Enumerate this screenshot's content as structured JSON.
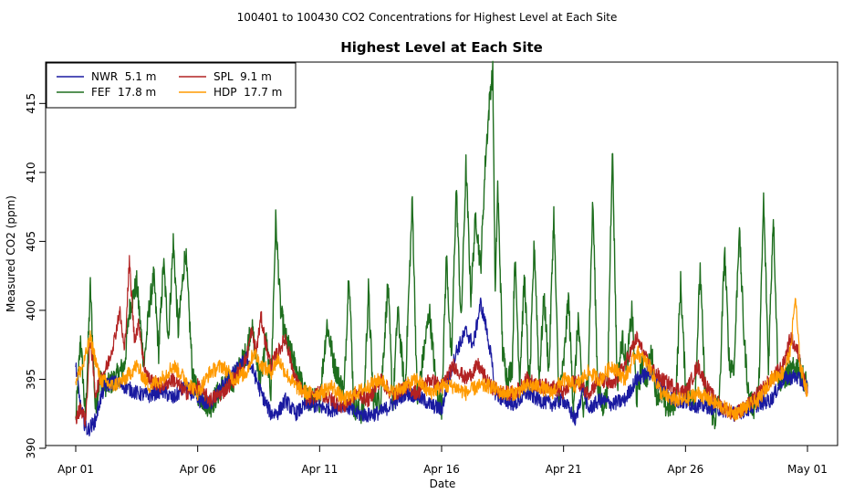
{
  "header": {
    "super_title": "100401  to  100430 CO2 Concentrations for Highest Level at Each Site"
  },
  "chart_data": {
    "type": "line",
    "title": "Highest Level at Each Site",
    "xlabel": "Date",
    "ylabel": "Measured CO2 (ppm)",
    "xlim": [
      0,
      30
    ],
    "ylim": [
      390,
      418
    ],
    "x_ticks": [
      {
        "value": 0,
        "label": "Apr 01"
      },
      {
        "value": 5,
        "label": "Apr 06"
      },
      {
        "value": 10,
        "label": "Apr 11"
      },
      {
        "value": 15,
        "label": "Apr 16"
      },
      {
        "value": 20,
        "label": "Apr 21"
      },
      {
        "value": 25,
        "label": "Apr 26"
      },
      {
        "value": 30,
        "label": "May 01"
      }
    ],
    "y_ticks": [
      {
        "value": 390,
        "label": "390"
      },
      {
        "value": 395,
        "label": "395"
      },
      {
        "value": 400,
        "label": "400"
      },
      {
        "value": 405,
        "label": "405"
      },
      {
        "value": 410,
        "label": "410"
      },
      {
        "value": 415,
        "label": "415"
      }
    ],
    "legend_position": "top-left",
    "grid": false,
    "series": [
      {
        "name": "NWR  5.1 m",
        "color": "#1a1aa0",
        "x": [
          0,
          0.2,
          0.4,
          0.5,
          0.8,
          1,
          1.2,
          1.5,
          2,
          2.5,
          3,
          3.5,
          4,
          4.5,
          5,
          5.5,
          6,
          6.5,
          7,
          7.3,
          7.6,
          8,
          8.3,
          8.6,
          9,
          9.5,
          10,
          10.5,
          11,
          11.5,
          12,
          12.5,
          13,
          13.5,
          14,
          14.5,
          15,
          15.3,
          15.6,
          16,
          16.3,
          16.6,
          16.8,
          17,
          17.2,
          17.5,
          18,
          18.5,
          19,
          19.5,
          20,
          20.5,
          20.8,
          21,
          21.5,
          22,
          22.5,
          23,
          23.5,
          24,
          24.5,
          25,
          25.5,
          26,
          26.5,
          27,
          27.5,
          28,
          28.5,
          29,
          29.5,
          30
        ],
        "y": [
          396,
          393,
          391.5,
          391.3,
          392,
          393.5,
          394.5,
          394.8,
          394.5,
          394,
          393.8,
          394.2,
          393.6,
          394.5,
          393.5,
          393.2,
          394.5,
          395.5,
          396.5,
          395.5,
          394,
          392.5,
          392.6,
          393.5,
          392.5,
          393.2,
          393,
          392.8,
          393.2,
          392.5,
          392.4,
          392.6,
          393.2,
          394,
          393.8,
          393.2,
          392.8,
          395,
          397,
          398.5,
          397.5,
          400.5,
          399,
          397,
          394,
          393.5,
          393.2,
          394,
          393.5,
          393.2,
          393.5,
          392,
          394.5,
          392.8,
          393.5,
          393.2,
          393.5,
          395,
          395.5,
          394.5,
          393.5,
          393.3,
          393.1,
          393,
          392.8,
          392.5,
          392.8,
          393.2,
          393.5,
          395,
          395.2,
          394.5
        ]
      },
      {
        "name": "FEF  17.8 m",
        "color": "#1e6e1e",
        "x": [
          0,
          0.2,
          0.4,
          0.6,
          0.8,
          1,
          1.3,
          1.6,
          2,
          2.2,
          2.5,
          2.8,
          3,
          3.2,
          3.4,
          3.6,
          3.8,
          4,
          4.2,
          4.5,
          4.8,
          5,
          5.5,
          6,
          6.5,
          7,
          7.2,
          7.4,
          7.6,
          7.8,
          8,
          8.2,
          8.4,
          8.6,
          9,
          9.5,
          10,
          10.3,
          10.6,
          11,
          11.2,
          11.4,
          11.8,
          12,
          12.2,
          12.5,
          12.8,
          13,
          13.2,
          13.5,
          13.8,
          14,
          14.2,
          14.5,
          14.8,
          15,
          15.2,
          15.4,
          15.6,
          15.8,
          16,
          16.2,
          16.4,
          16.6,
          16.8,
          17,
          17.1,
          17.2,
          17.3,
          17.5,
          17.7,
          17.9,
          18,
          18.2,
          18.4,
          18.6,
          18.8,
          19,
          19.2,
          19.4,
          19.6,
          19.8,
          20,
          20.2,
          20.4,
          20.6,
          20.8,
          21,
          21.2,
          21.4,
          21.6,
          21.8,
          22,
          22.2,
          22.4,
          22.6,
          22.8,
          23,
          23.2,
          23.4,
          23.6,
          23.8,
          24,
          24.2,
          24.4,
          24.6,
          24.8,
          25,
          25.2,
          25.4,
          25.6,
          25.8,
          26,
          26.2,
          26.4,
          26.6,
          26.8,
          27,
          27.2,
          27.4,
          27.6,
          27.8,
          28,
          28.2,
          28.4,
          28.6,
          28.8,
          29,
          29.3,
          29.6,
          30
        ],
        "y": [
          392,
          398,
          392,
          401.8,
          393,
          395,
          394.5,
          395,
          396,
          400,
          402,
          396,
          400,
          402.5,
          397,
          403.5,
          398,
          405,
          398.5,
          404.5,
          395,
          394,
          393,
          394.5,
          395,
          397,
          399,
          396.5,
          395,
          398,
          394,
          406.5,
          400,
          398,
          396,
          393.5,
          393.5,
          399,
          396,
          394,
          403,
          393,
          392.5,
          401.5,
          393.5,
          393.5,
          402,
          393,
          400,
          394,
          408,
          393.5,
          396,
          400,
          394,
          393,
          404,
          396,
          409,
          399,
          410.5,
          401,
          407,
          403,
          411,
          416,
          417.2,
          401,
          409,
          397,
          395,
          396,
          404,
          395,
          402.5,
          394,
          405,
          395,
          401,
          395.5,
          407,
          394,
          396,
          401,
          393,
          399.5,
          392.5,
          395,
          408,
          394.5,
          393,
          394,
          412,
          394.5,
          398,
          396,
          400,
          393.5,
          396,
          395,
          397,
          394,
          394,
          393,
          393,
          393.5,
          402,
          394.5,
          393.5,
          394,
          403,
          394,
          393,
          392,
          394,
          404.5,
          396,
          396,
          406,
          398,
          393.5,
          393,
          394,
          408,
          396,
          407,
          395,
          395,
          395.5,
          396,
          394.5
        ]
      },
      {
        "name": "SPL  9.1 m",
        "color": "#b22222",
        "x": [
          0,
          0.2,
          0.4,
          0.6,
          0.8,
          1,
          1.3,
          1.6,
          1.8,
          2,
          2.2,
          2.4,
          2.6,
          2.8,
          3,
          3.5,
          4,
          4.5,
          5,
          5.5,
          6,
          6.5,
          7,
          7.2,
          7.4,
          7.6,
          7.8,
          8,
          8.3,
          8.6,
          9,
          9.5,
          10,
          10.5,
          11,
          11.5,
          12,
          12.5,
          13,
          13.5,
          14,
          14.5,
          15,
          15.5,
          16,
          16.5,
          17,
          17.5,
          18,
          18.5,
          19,
          19.5,
          20,
          20.5,
          21,
          21.5,
          22,
          22.5,
          23,
          23.5,
          24,
          24.5,
          25,
          25.5,
          26,
          26.5,
          27,
          27.5,
          28,
          28.5,
          29,
          29.3,
          29.6,
          30
        ],
        "y": [
          392,
          393,
          392,
          398,
          394,
          395,
          396,
          398,
          400,
          397,
          403.5,
          398,
          399,
          396,
          395,
          394.5,
          395,
          394,
          394.5,
          393.5,
          394,
          395,
          396.5,
          398.5,
          397,
          399.5,
          397.5,
          396,
          397,
          398,
          395,
          393.5,
          394,
          393.5,
          393,
          394,
          393.5,
          395,
          393.8,
          394.5,
          394,
          395,
          394.5,
          396,
          395,
          396,
          394.5,
          394,
          394,
          395,
          394.5,
          394.5,
          394,
          395,
          394,
          395,
          394.5,
          396,
          398,
          396,
          395,
          394.5,
          394,
          396,
          394,
          393,
          392.5,
          393,
          394,
          395,
          396,
          398,
          397,
          394
        ]
      },
      {
        "name": "HDP  17.7 m",
        "color": "#ff9a00",
        "x": [
          0,
          0.3,
          0.6,
          1,
          1.5,
          2,
          2.5,
          3,
          3.5,
          4,
          4.5,
          5,
          5.5,
          6,
          6.5,
          7,
          7.3,
          7.6,
          8,
          8.3,
          8.6,
          9,
          9.5,
          10,
          10.5,
          11,
          11.5,
          12,
          12.5,
          13,
          13.5,
          14,
          14.5,
          15,
          15.5,
          16,
          16.5,
          17,
          17.5,
          18,
          18.5,
          19,
          19.5,
          20,
          20.5,
          21,
          21.5,
          22,
          22.5,
          23,
          23.5,
          24,
          24.5,
          25,
          25.5,
          26,
          26.5,
          27,
          27.5,
          28,
          28.5,
          29,
          29.3,
          29.5,
          29.7,
          30
        ],
        "y": [
          395,
          396,
          398,
          395,
          394.5,
          395,
          396,
          394.5,
          395,
          396,
          395,
          394,
          395.5,
          396,
          395,
          395.5,
          397,
          396,
          395.5,
          396.5,
          395.5,
          394.5,
          394,
          394,
          394.5,
          393.5,
          394,
          394.5,
          395,
          394,
          394.5,
          395,
          394,
          394.5,
          394.5,
          394,
          394.5,
          394.5,
          394,
          394,
          394.5,
          394.5,
          394,
          395,
          394.5,
          395.5,
          395,
          396,
          395,
          397,
          396,
          394,
          393.5,
          393.5,
          394,
          393.5,
          393,
          392.5,
          393,
          393.5,
          395,
          395.5,
          397,
          401,
          396,
          394
        ]
      }
    ]
  }
}
